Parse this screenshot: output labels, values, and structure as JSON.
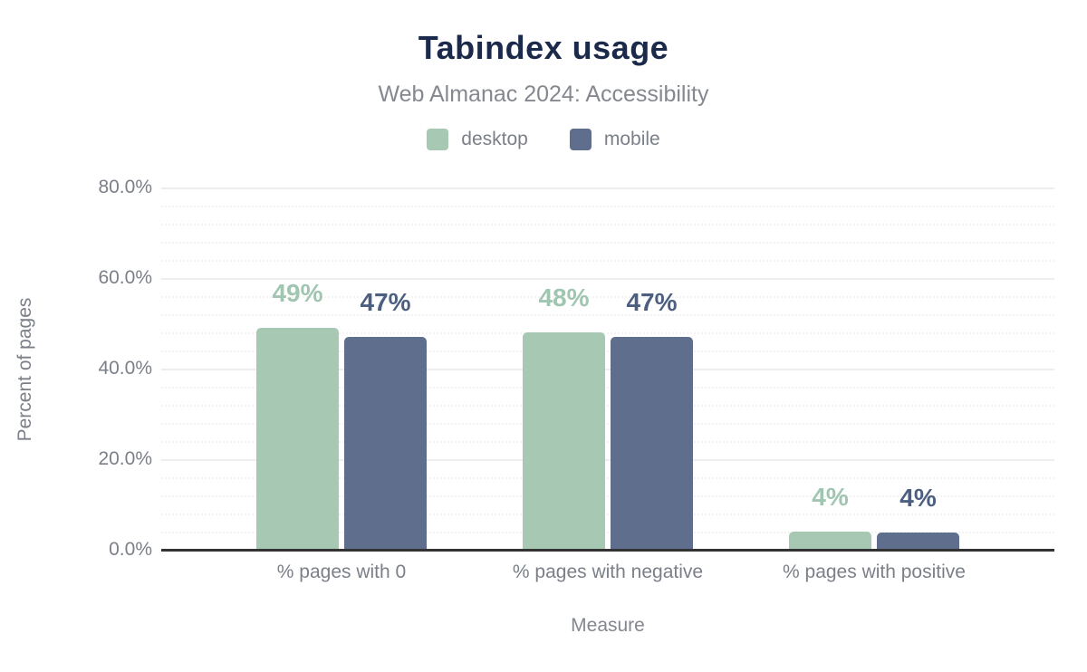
{
  "header": {
    "title": "Tabindex usage",
    "subtitle": "Web Almanac 2024: Accessibility"
  },
  "colors": {
    "title": "#1b2a4a",
    "subtitle_text": "#85888f",
    "axis_text": "#7b7f88",
    "axis_line": "#333333",
    "major_gridline": "#eeeeee",
    "minor_gridline": "#f3f3f3",
    "desktop": "#a7c9b4",
    "mobile": "#5f6e8d",
    "desktop_label": "#a0c5b0",
    "mobile_label": "#4d5f80"
  },
  "chart_data": {
    "type": "bar",
    "title": "Tabindex usage",
    "subtitle": "Web Almanac 2024: Accessibility",
    "categories": [
      "% pages with 0",
      "% pages with negative",
      "% pages with positive"
    ],
    "series": [
      {
        "name": "desktop",
        "color": "#a7c9b4",
        "label_color": "#a0c5b0",
        "values": [
          49,
          47.9,
          4
        ],
        "data_labels": [
          "49%",
          "48%",
          "4%"
        ]
      },
      {
        "name": "mobile",
        "color": "#5f6e8d",
        "label_color": "#4d5f80",
        "values": [
          47,
          47,
          3.7
        ],
        "data_labels": [
          "47%",
          "47%",
          "4%"
        ]
      }
    ],
    "xlabel": "Measure",
    "ylabel": "Percent of pages",
    "ylim": [
      0,
      80
    ],
    "y_ticks": {
      "values": [
        0,
        20,
        40,
        60,
        80
      ],
      "labels": [
        "0.0%",
        "20.0%",
        "40.0%",
        "60.0%",
        "80.0%"
      ]
    },
    "minor_tick_step": 4,
    "grid": "on",
    "legend_position": "top"
  }
}
